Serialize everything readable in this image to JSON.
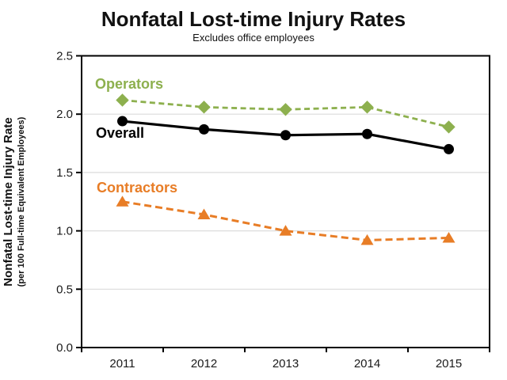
{
  "header": {
    "title": "Nonfatal Lost-time Injury Rates",
    "subtitle": "Excludes office employees"
  },
  "chart_data": {
    "type": "line",
    "title": "Nonfatal Lost-time Injury Rates",
    "subtitle": "Excludes office employees",
    "categories": [
      "2011",
      "2012",
      "2013",
      "2014",
      "2015"
    ],
    "series": [
      {
        "name": "Operators",
        "values": [
          2.12,
          2.06,
          2.04,
          2.06,
          1.89
        ],
        "color": "#8DB04E",
        "line_style": "dashed",
        "dash": "7 4.5",
        "line_width": 2.8,
        "marker": "diamond"
      },
      {
        "name": "Overall",
        "values": [
          1.94,
          1.87,
          1.82,
          1.83,
          1.7
        ],
        "color": "#000000",
        "line_style": "solid",
        "dash": "",
        "line_width": 3.2,
        "marker": "circle"
      },
      {
        "name": "Contractors",
        "values": [
          1.25,
          1.14,
          1.0,
          0.92,
          0.94
        ],
        "color": "#E87D26",
        "line_style": "dashed",
        "dash": "9 5",
        "line_width": 3,
        "marker": "triangle"
      }
    ],
    "ylabel_line1": "Nonfatal Lost-time Injury Rate",
    "ylabel_line2": "(per 100 Full-time Equivalent Employees)",
    "xlabel": "",
    "ylim": [
      0,
      2.5
    ],
    "y_ticks": [
      "0.0",
      "0.5",
      "1.0",
      "1.5",
      "2.0",
      "2.5"
    ],
    "grid": "horizontal-only",
    "legend_position": "inline-labels",
    "gridline_color": "#DCDCDC",
    "axis_color": "#000000"
  }
}
